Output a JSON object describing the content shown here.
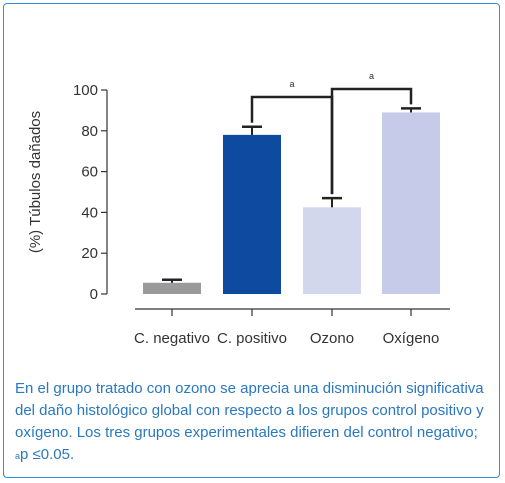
{
  "chart_data": {
    "type": "bar",
    "ylabel": "(%) Túbulos dañados",
    "xlabel": "",
    "ylim": [
      0,
      100
    ],
    "yticks": [
      0,
      20,
      40,
      60,
      80,
      100
    ],
    "categories": [
      "C. negativo",
      "C. positivo",
      "Ozono",
      "Oxígeno"
    ],
    "values": [
      5.5,
      78,
      42.5,
      89
    ],
    "errors": [
      1.5,
      4,
      4.5,
      2
    ],
    "colors": [
      "#9a9a9c",
      "#0d4aa0",
      "#d2d7ee",
      "#c7cbea"
    ],
    "significance": [
      {
        "from": 1,
        "to": 2,
        "label": "a"
      },
      {
        "from": 2,
        "to": 3,
        "label": "a"
      }
    ]
  },
  "caption": {
    "text": "En el grupo tratado con ozono se aprecia una disminución significativa del daño histológico global con respecto a los grupos control positivo y oxígeno. Los tres grupos experimentales difieren del control negativo; ",
    "sup": "a",
    "tail": "p ≤0.05."
  }
}
